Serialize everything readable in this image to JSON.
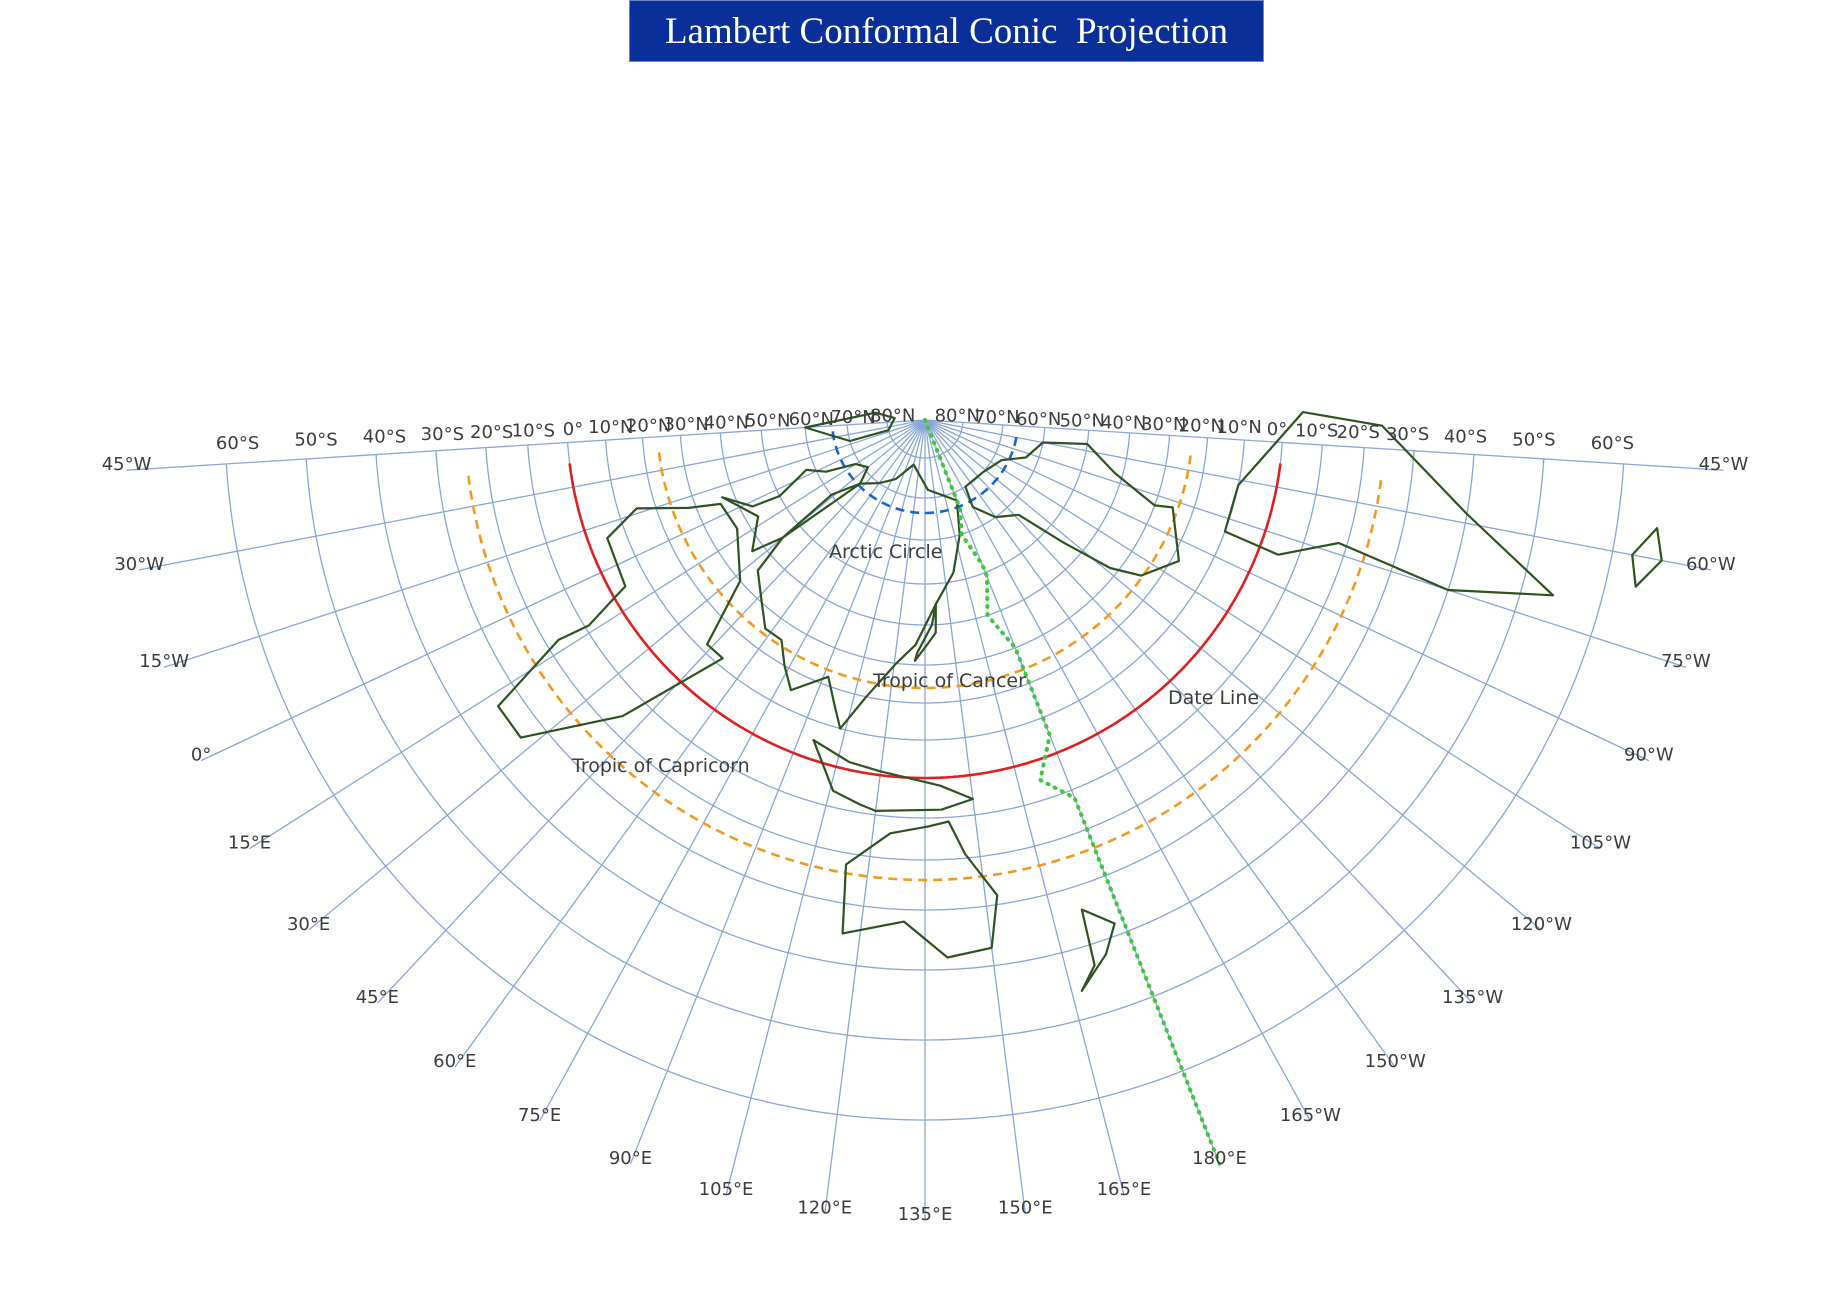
{
  "title": "Lambert Conformal Conic  Projection",
  "meridians": [
    {
      "lon": 0,
      "label": "0°"
    },
    {
      "lon": 15,
      "label": "15°E"
    },
    {
      "lon": 30,
      "label": "30°E"
    },
    {
      "lon": 45,
      "label": "45°E"
    },
    {
      "lon": 60,
      "label": "60°E"
    },
    {
      "lon": 75,
      "label": "75°E"
    },
    {
      "lon": 90,
      "label": "90°E"
    },
    {
      "lon": 105,
      "label": "105°E"
    },
    {
      "lon": 120,
      "label": "120°E"
    },
    {
      "lon": 135,
      "label": "135°E"
    },
    {
      "lon": 150,
      "label": "150°E"
    },
    {
      "lon": 165,
      "label": "165°E"
    },
    {
      "lon": 180,
      "label": "180°E"
    },
    {
      "lon": 195,
      "label": "165°W"
    },
    {
      "lon": 210,
      "label": "150°W"
    },
    {
      "lon": 225,
      "label": "135°W"
    },
    {
      "lon": 240,
      "label": "120°W"
    },
    {
      "lon": 255,
      "label": "105°W"
    },
    {
      "lon": 270,
      "label": "90°W"
    },
    {
      "lon": 285,
      "label": "75°W"
    },
    {
      "lon": 300,
      "label": "60°W"
    },
    {
      "lon": 315,
      "label": "45°W"
    },
    {
      "lon": -15,
      "label": "15°W"
    },
    {
      "lon": -30,
      "label": "30°W"
    },
    {
      "lon": -45,
      "label": "45°W"
    }
  ],
  "parallels": [
    {
      "lat": 80,
      "label": "80°N"
    },
    {
      "lat": 70,
      "label": "70°N"
    },
    {
      "lat": 60,
      "label": "60°N"
    },
    {
      "lat": 50,
      "label": "50°N"
    },
    {
      "lat": 40,
      "label": "40°N"
    },
    {
      "lat": 30,
      "label": "30°N"
    },
    {
      "lat": 20,
      "label": "20°N"
    },
    {
      "lat": 10,
      "label": "10°N"
    },
    {
      "lat": 0,
      "label": "0°"
    },
    {
      "lat": -10,
      "label": "10°S"
    },
    {
      "lat": -20,
      "label": "20°S"
    },
    {
      "lat": -30,
      "label": "30°S"
    },
    {
      "lat": -40,
      "label": "40°S"
    },
    {
      "lat": -50,
      "label": "50°S"
    },
    {
      "lat": -60,
      "label": "60°S"
    }
  ],
  "special_lines": [
    {
      "name": "Arctic Circle",
      "lat": 66.5,
      "color": "#1565d8",
      "style": "dashed"
    },
    {
      "name": "Tropic of Cancer",
      "lat": 23.5,
      "color": "#f39a1e",
      "style": "dashed"
    },
    {
      "name": "Equator",
      "lat": 0,
      "color": "#e02020",
      "style": "solid"
    },
    {
      "name": "Tropic of Capricorn",
      "lat": -23.5,
      "color": "#f39a1e",
      "style": "dashed"
    }
  ],
  "annotations": {
    "arctic_circle": "Arctic Circle",
    "tropic_of_cancer": "Tropic of Cancer",
    "tropic_of_capricorn": "Tropic of Capricorn",
    "date_line": "Date Line"
  },
  "colors": {
    "grid": "#8aa6d6",
    "coast": "#2e5320",
    "date_line": "#3fc83f",
    "title_bg": "#0a2f99"
  }
}
